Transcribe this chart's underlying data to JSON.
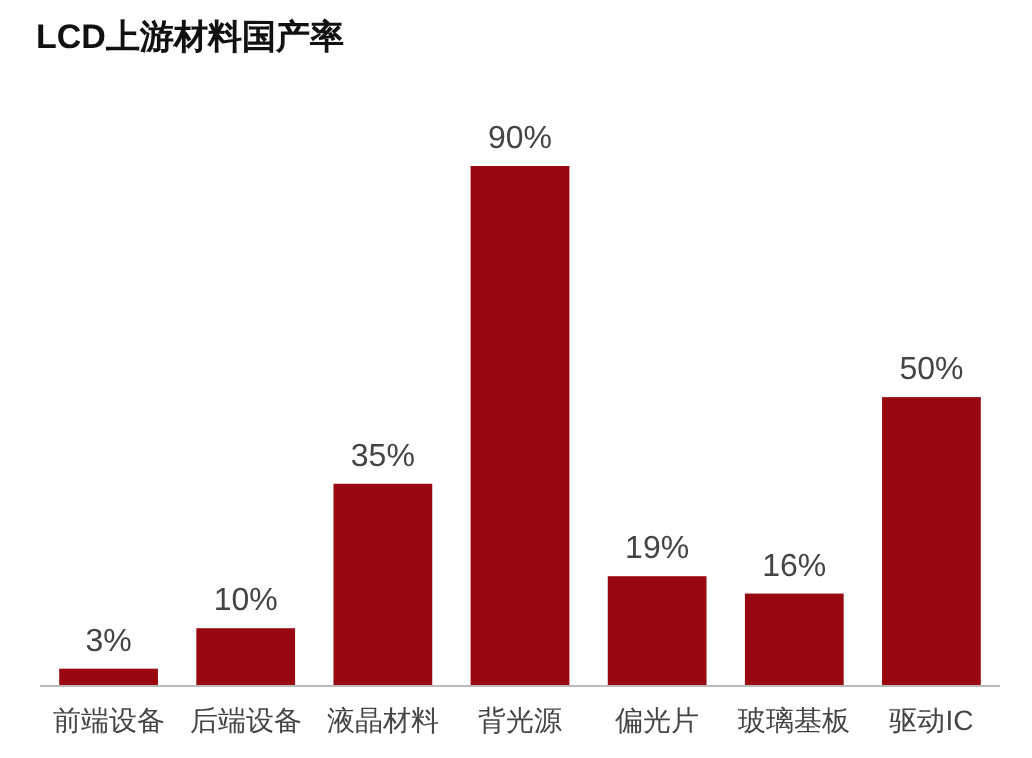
{
  "chart_data": {
    "type": "bar",
    "title": "LCD上游材料国产率",
    "categories": [
      "前端设备",
      "后端设备",
      "液晶材料",
      "背光源",
      "偏光片",
      "玻璃基板",
      "驱动IC"
    ],
    "values": [
      3,
      10,
      35,
      90,
      19,
      16,
      50
    ],
    "value_labels": [
      "3%",
      "10%",
      "35%",
      "90%",
      "19%",
      "16%",
      "50%"
    ],
    "color": "#990810",
    "tick_labels": "x"
  }
}
